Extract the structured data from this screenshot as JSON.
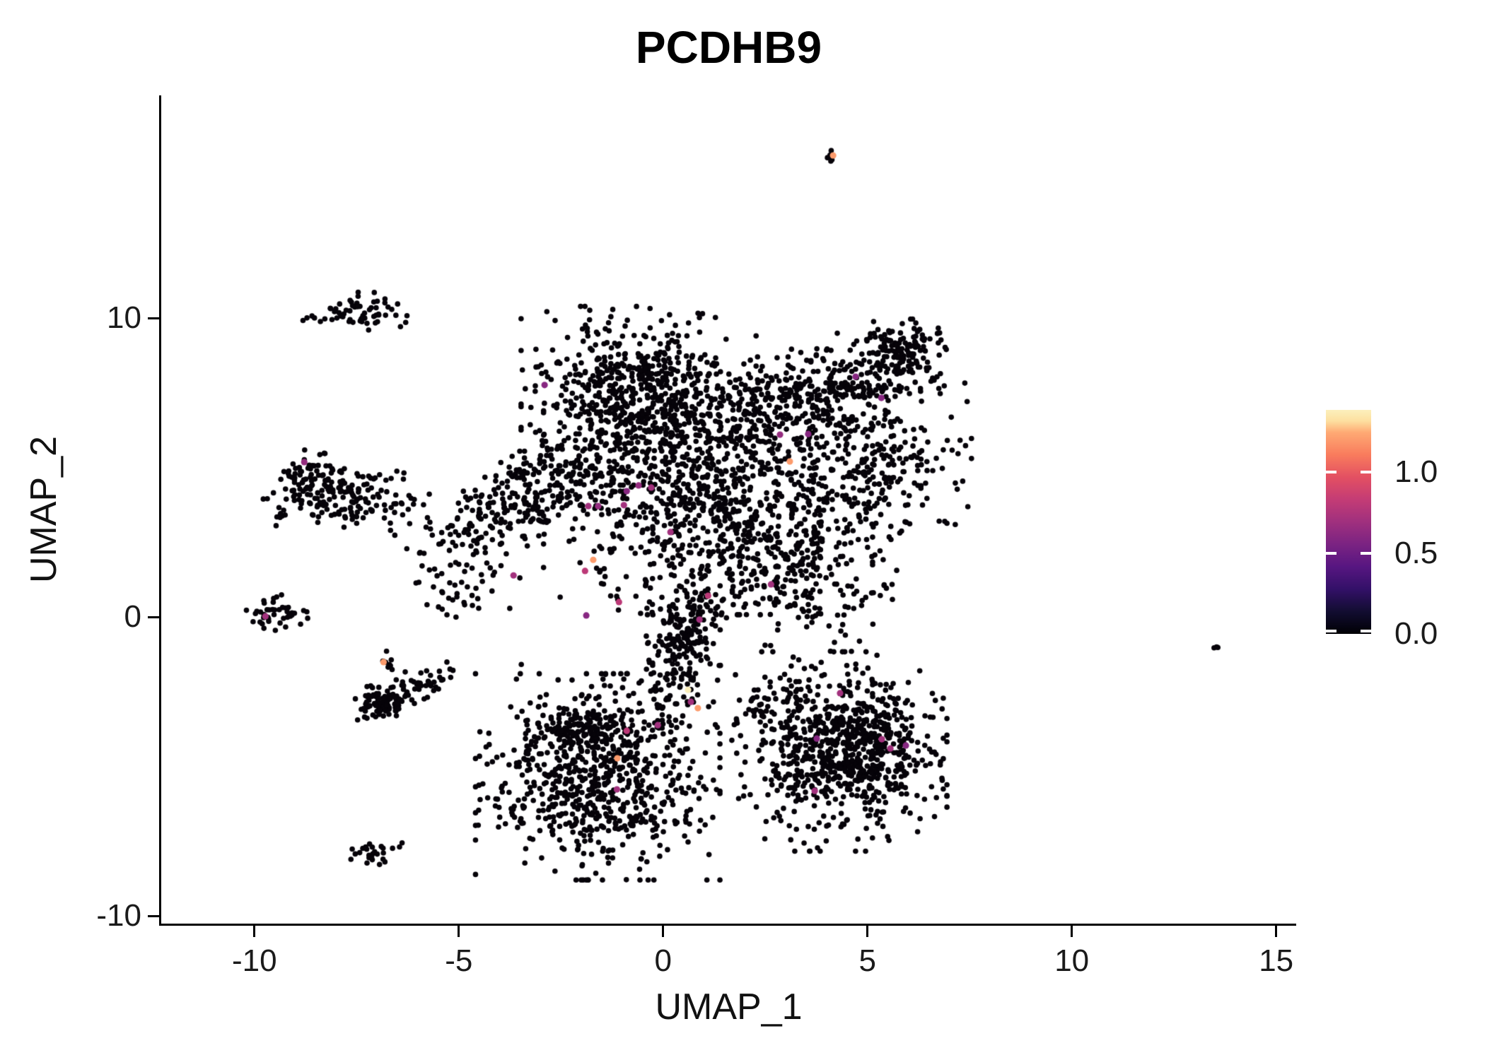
{
  "figure": {
    "title": "PCDHB9"
  },
  "chart_data": {
    "type": "scatter",
    "title": "PCDHB9",
    "xlabel": "UMAP_1",
    "ylabel": "UMAP_2",
    "x_ticks": [
      -10,
      -5,
      0,
      5,
      10,
      15
    ],
    "y_ticks": [
      10,
      0,
      -10
    ],
    "x_range": [
      -12.28,
      15.49
    ],
    "y_range": [
      -10.26,
      17.45
    ],
    "grid": false,
    "background": "#ffffff",
    "point_base_color": "#060309",
    "point_radius_px": 3.8,
    "expressing_point_radius_px": 4.6,
    "colorbar": {
      "position": "right",
      "ticks": [
        0.0,
        0.5,
        1.0
      ],
      "vmax": 1.384,
      "colormap": "magma",
      "stops": [
        [
          0.0,
          "#000004"
        ],
        [
          0.1,
          "#120d31"
        ],
        [
          0.2,
          "#331068"
        ],
        [
          0.3,
          "#571681"
        ],
        [
          0.4,
          "#7b2382"
        ],
        [
          0.5,
          "#a0307e"
        ],
        [
          0.6,
          "#c43c75"
        ],
        [
          0.7,
          "#e35062"
        ],
        [
          0.8,
          "#f97c5d"
        ],
        [
          0.9,
          "#feaa74"
        ],
        [
          0.95,
          "#fddf9f"
        ],
        [
          1.0,
          "#fcf0bd"
        ]
      ]
    },
    "clusters": [
      {
        "n": 5,
        "cx": 4.15,
        "cy": 15.48,
        "sx": 0.07,
        "sy": 0.1,
        "rot": 0
      },
      {
        "n": 55,
        "cx": -7.4,
        "cy": 10.28,
        "sx": 0.5,
        "sy": 0.3,
        "rot": -8
      },
      {
        "n": 8,
        "cx": -8.35,
        "cy": 9.95,
        "sx": 0.28,
        "sy": 0.06,
        "rot": 0
      },
      {
        "n": 90,
        "cx": -8.65,
        "cy": 4.5,
        "sx": 0.5,
        "sy": 0.5,
        "rot": 0
      },
      {
        "n": 115,
        "cx": -7.5,
        "cy": 4.0,
        "sx": 0.72,
        "sy": 0.45,
        "rot": -10
      },
      {
        "n": 8,
        "cx": -9.35,
        "cy": 3.35,
        "sx": 0.14,
        "sy": 0.18,
        "rot": 0
      },
      {
        "n": 42,
        "cx": -9.47,
        "cy": 0.15,
        "sx": 0.34,
        "sy": 0.26,
        "rot": 0
      },
      {
        "n": 60,
        "cx": -7.0,
        "cy": -2.95,
        "sx": 0.28,
        "sy": 0.28,
        "rot": 0
      },
      {
        "n": 70,
        "cx": -6.3,
        "cy": -2.5,
        "sx": 0.7,
        "sy": 0.2,
        "rot": 30
      },
      {
        "n": 9,
        "cx": -6.8,
        "cy": -1.5,
        "sx": 0.16,
        "sy": 0.16,
        "rot": 0
      },
      {
        "n": 26,
        "cx": -7.05,
        "cy": -7.9,
        "sx": 0.3,
        "sy": 0.17,
        "rot": 5
      },
      {
        "n": 650,
        "cx": -0.6,
        "cy": 7.4,
        "sx": 1.25,
        "sy": 1.3,
        "rot": 0
      },
      {
        "n": 380,
        "cx": 4.0,
        "cy": 7.6,
        "sx": 1.4,
        "sy": 0.72,
        "rot": 22
      },
      {
        "n": 90,
        "cx": 5.8,
        "cy": 9.0,
        "sx": 0.42,
        "sy": 0.42,
        "rot": 0
      },
      {
        "n": 330,
        "cx": -3.2,
        "cy": 4.1,
        "sx": 1.55,
        "sy": 0.6,
        "rot": 33
      },
      {
        "n": 850,
        "cx": 1.1,
        "cy": 4.1,
        "sx": 1.75,
        "sy": 1.75,
        "rot": 0
      },
      {
        "n": 260,
        "cx": 4.9,
        "cy": 5.0,
        "sx": 1.15,
        "sy": 1.15,
        "rot": 0
      },
      {
        "n": 240,
        "cx": 0.5,
        "cy": -1.1,
        "sx": 0.42,
        "sy": 1.3,
        "rot": -8
      },
      {
        "n": 250,
        "cx": 3.2,
        "cy": 1.7,
        "sx": 1.15,
        "sy": 1.15,
        "rot": -30
      },
      {
        "n": 50,
        "cx": -5.0,
        "cy": 1.2,
        "sx": 0.65,
        "sy": 0.75,
        "rot": 0
      },
      {
        "n": 780,
        "cx": -1.6,
        "cy": -5.35,
        "sx": 1.3,
        "sy": 1.5,
        "rot": 0
      },
      {
        "n": 80,
        "cx": -1.9,
        "cy": -3.7,
        "sx": 0.5,
        "sy": 0.3,
        "rot": 0
      },
      {
        "n": 560,
        "cx": 4.3,
        "cy": -4.5,
        "sx": 1.15,
        "sy": 1.45,
        "rot": 0
      },
      {
        "n": 260,
        "cx": 4.9,
        "cy": -4.3,
        "sx": 0.85,
        "sy": 1.15,
        "rot": 0
      },
      {
        "n": 40,
        "cx": 2.6,
        "cy": -3.2,
        "sx": 0.5,
        "sy": 0.55,
        "rot": 0
      },
      {
        "n": 3,
        "cx": 13.56,
        "cy": -1.02,
        "sx": 0.07,
        "sy": 0.05,
        "rot": -35
      }
    ],
    "singleton_points": [
      [
        -5.29,
        -1.51
      ],
      [
        -6.31,
        -1.84
      ],
      [
        -8.87,
        -0.24
      ],
      [
        -6.62,
        -7.74
      ],
      [
        -3.47,
        -1.59
      ]
    ],
    "expressing_cells": [
      [
        4.16,
        15.44,
        1.2
      ],
      [
        -8.78,
        5.18,
        0.65
      ],
      [
        -9.73,
        0.02,
        0.7
      ],
      [
        -6.84,
        -1.51,
        1.2
      ],
      [
        -2.9,
        7.76,
        0.6
      ],
      [
        4.71,
        8.04,
        0.6
      ],
      [
        5.34,
        7.33,
        0.6
      ],
      [
        2.86,
        6.1,
        0.65
      ],
      [
        3.55,
        6.12,
        0.6
      ],
      [
        3.1,
        5.2,
        1.2
      ],
      [
        -0.6,
        4.4,
        0.65
      ],
      [
        -0.29,
        4.33,
        0.7
      ],
      [
        -0.89,
        4.21,
        0.6
      ],
      [
        -1.83,
        3.71,
        0.7
      ],
      [
        -1.59,
        3.71,
        0.65
      ],
      [
        -0.96,
        3.74,
        0.7
      ],
      [
        -1.71,
        1.91,
        1.2
      ],
      [
        -1.91,
        1.54,
        0.8
      ],
      [
        0.18,
        2.84,
        0.7
      ],
      [
        -3.66,
        1.39,
        0.7
      ],
      [
        2.64,
        1.09,
        0.7
      ],
      [
        -1.08,
        0.5,
        0.8
      ],
      [
        -1.88,
        0.05,
        0.6
      ],
      [
        1.1,
        0.71,
        0.8
      ],
      [
        0.89,
        -0.09,
        0.7
      ],
      [
        0.61,
        -2.44,
        1.38
      ],
      [
        0.68,
        -2.84,
        0.7
      ],
      [
        0.85,
        -3.05,
        1.2
      ],
      [
        -0.13,
        -3.62,
        0.7
      ],
      [
        -0.89,
        -3.81,
        0.8
      ],
      [
        -1.12,
        -4.73,
        1.2
      ],
      [
        -1.13,
        -5.77,
        0.7
      ],
      [
        4.33,
        -2.55,
        0.7
      ],
      [
        3.76,
        -4.07,
        0.6
      ],
      [
        5.35,
        -4.09,
        0.7
      ],
      [
        5.56,
        -4.4,
        0.7
      ],
      [
        5.94,
        -4.3,
        0.6
      ],
      [
        3.71,
        -5.82,
        0.7
      ]
    ]
  }
}
